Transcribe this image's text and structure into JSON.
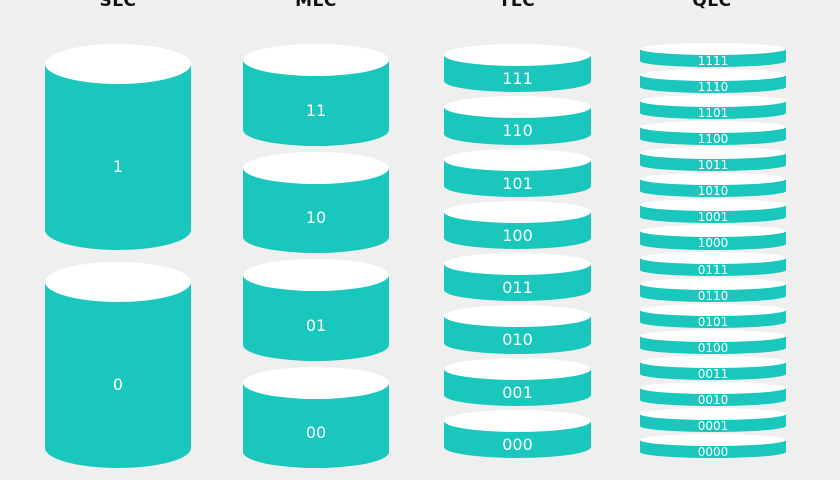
{
  "columns": [
    {
      "title": "SLC",
      "cells": [
        "1",
        "0"
      ]
    },
    {
      "title": "MLC",
      "cells": [
        "11",
        "10",
        "01",
        "00"
      ]
    },
    {
      "title": "TLC",
      "cells": [
        "111",
        "110",
        "101",
        "100",
        "011",
        "010",
        "001",
        "000"
      ]
    },
    {
      "title": "QLC",
      "cells": [
        "1111",
        "1110",
        "1101",
        "1100",
        "1011",
        "1010",
        "1001",
        "1000",
        "0111",
        "0110",
        "0101",
        "0100",
        "0011",
        "0010",
        "0001",
        "0000"
      ]
    }
  ],
  "colors": {
    "cell_fill": "#19c7bc",
    "cell_top": "#ffffff",
    "background": "#efefef",
    "label": "#ffffff"
  }
}
